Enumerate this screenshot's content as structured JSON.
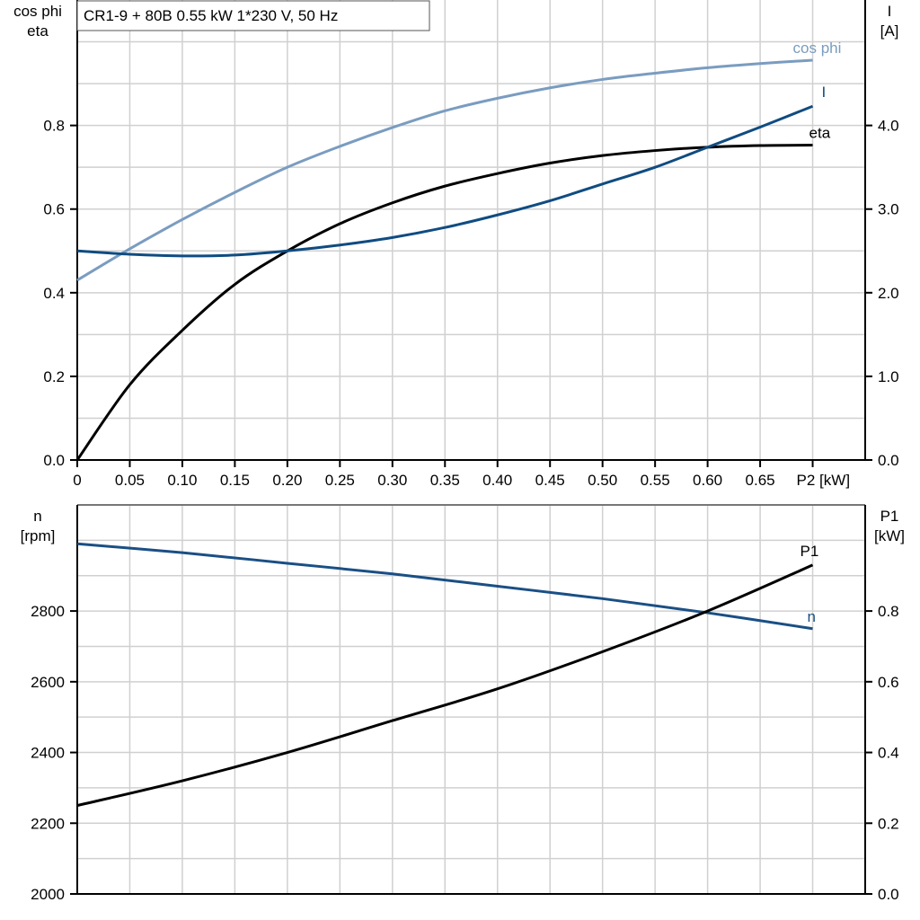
{
  "chart_data": [
    {
      "type": "line",
      "title": "CR1-9 + 80B   0.55 kW   1*230 V, 50 Hz",
      "xlabel": "P2 [kW]",
      "ylabel_left": [
        "cos phi",
        "eta"
      ],
      "ylabel_right": [
        "I",
        "[A]"
      ],
      "xlim": [
        0,
        0.75
      ],
      "ylim_left": [
        0,
        1.1
      ],
      "ylim_right": [
        0,
        5.5
      ],
      "x_ticks": [
        "0",
        "0.05",
        "0.10",
        "0.15",
        "0.20",
        "0.25",
        "0.30",
        "0.35",
        "0.40",
        "0.45",
        "0.50",
        "0.55",
        "0.60",
        "0.65"
      ],
      "y_ticks_left": [
        "0.0",
        "0.2",
        "0.4",
        "0.6",
        "0.8"
      ],
      "y_ticks_right": [
        "0.0",
        "1.0",
        "2.0",
        "3.0",
        "4.0"
      ],
      "grid": true,
      "x": [
        0,
        0.05,
        0.1,
        0.15,
        0.2,
        0.25,
        0.3,
        0.35,
        0.4,
        0.45,
        0.5,
        0.55,
        0.6,
        0.65,
        0.7
      ],
      "series": [
        {
          "name": "cos phi",
          "axis": "left",
          "color": "#7a9cc0",
          "values": [
            0.43,
            0.505,
            0.575,
            0.64,
            0.7,
            0.75,
            0.795,
            0.835,
            0.865,
            0.89,
            0.91,
            0.925,
            0.938,
            0.948,
            0.956
          ]
        },
        {
          "name": "eta",
          "axis": "left",
          "color": "#000000",
          "values": [
            0.0,
            0.18,
            0.31,
            0.42,
            0.5,
            0.565,
            0.615,
            0.655,
            0.685,
            0.71,
            0.728,
            0.74,
            0.748,
            0.752,
            0.753
          ]
        },
        {
          "name": "I",
          "axis": "right",
          "color": "#0f4c81",
          "values": [
            2.5,
            2.46,
            2.44,
            2.45,
            2.5,
            2.57,
            2.66,
            2.78,
            2.93,
            3.1,
            3.3,
            3.5,
            3.74,
            3.98,
            4.23
          ]
        }
      ]
    },
    {
      "type": "line",
      "ylabel_left": [
        "n",
        "[rpm]"
      ],
      "ylabel_right": [
        "P1",
        "[kW]"
      ],
      "xlim": [
        0,
        0.75
      ],
      "ylim_left": [
        2000,
        3100
      ],
      "ylim_right": [
        0,
        1.1
      ],
      "y_ticks_left": [
        "2000",
        "2200",
        "2400",
        "2600",
        "2800"
      ],
      "y_ticks_right": [
        "0.0",
        "0.2",
        "0.4",
        "0.6",
        "0.8"
      ],
      "grid": true,
      "x": [
        0,
        0.1,
        0.2,
        0.3,
        0.4,
        0.5,
        0.6,
        0.7
      ],
      "series": [
        {
          "name": "n",
          "axis": "left",
          "color": "#1a4f85",
          "values": [
            2990,
            2965,
            2935,
            2905,
            2870,
            2835,
            2795,
            2750
          ]
        },
        {
          "name": "P1",
          "axis": "right",
          "color": "#000000",
          "values": [
            0.25,
            0.32,
            0.4,
            0.49,
            0.58,
            0.685,
            0.8,
            0.93
          ]
        }
      ]
    }
  ]
}
